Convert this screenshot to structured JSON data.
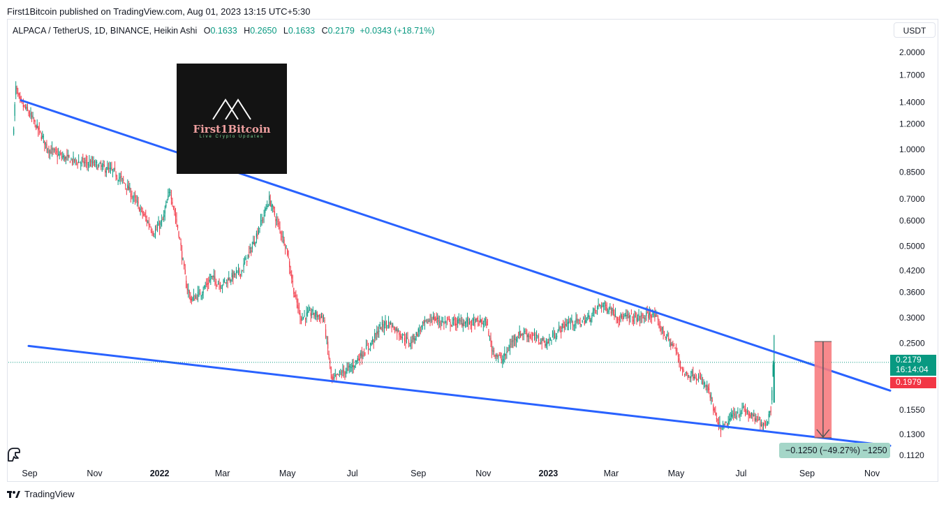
{
  "header": {
    "published": "First1Bitcoin published on TradingView.com, Aug 01, 2023 13:15 UTC+5:30"
  },
  "legend": {
    "symbol": "ALPACA / TetherUS, 1D, BINANCE, Heikin Ashi",
    "open_label": "O",
    "open": "0.1633",
    "high_label": "H",
    "high": "0.2650",
    "low_label": "L",
    "low": "0.1633",
    "close_label": "C",
    "close": "0.2179",
    "change": "+0.0343 (+18.71%)"
  },
  "currency_button": "USDT",
  "footer": {
    "brand": "TradingView"
  },
  "logo": {
    "name": "First1Bitcoin",
    "tagline": "Live Crypto Updates"
  },
  "price_tags": {
    "last_price": "0.2179",
    "countdown": "16:14:04",
    "line_value": "0.1979"
  },
  "measure": {
    "label": "−0.1250 (−49.27%) −1250"
  },
  "colors": {
    "up": "#089981",
    "down": "#f23645",
    "trendline": "#2962ff",
    "measure_fill": "#f77c80"
  },
  "chart_data": {
    "type": "candlestick",
    "scale": "log",
    "ylim": [
      0.105,
      2.2
    ],
    "xlim": [
      "2021-08-12",
      "2023-11-18"
    ],
    "y_ticks": [
      2.0,
      1.7,
      1.4,
      1.2,
      1.0,
      0.85,
      0.7,
      0.6,
      0.5,
      0.42,
      0.36,
      0.3,
      0.25,
      0.155,
      0.13,
      0.112
    ],
    "y_tick_labels": [
      "2.0000",
      "1.7000",
      "1.4000",
      "1.2000",
      "1.0000",
      "0.8500",
      "0.7000",
      "0.6000",
      "0.5000",
      "0.4200",
      "0.3600",
      "0.3000",
      "0.2500",
      "0.1550",
      "0.1300",
      "0.1120"
    ],
    "x_ticks": [
      {
        "label": "Sep",
        "date": "2021-09-01",
        "bold": false
      },
      {
        "label": "Nov",
        "date": "2021-11-01",
        "bold": false
      },
      {
        "label": "2022",
        "date": "2022-01-01",
        "bold": true
      },
      {
        "label": "Mar",
        "date": "2022-03-01",
        "bold": false
      },
      {
        "label": "May",
        "date": "2022-05-01",
        "bold": false
      },
      {
        "label": "Jul",
        "date": "2022-07-01",
        "bold": false
      },
      {
        "label": "Sep",
        "date": "2022-09-01",
        "bold": false
      },
      {
        "label": "Nov",
        "date": "2022-11-01",
        "bold": false
      },
      {
        "label": "2023",
        "date": "2023-01-01",
        "bold": true
      },
      {
        "label": "Mar",
        "date": "2023-03-01",
        "bold": false
      },
      {
        "label": "May",
        "date": "2023-05-01",
        "bold": false
      },
      {
        "label": "Jul",
        "date": "2023-07-01",
        "bold": false
      },
      {
        "label": "Sep",
        "date": "2023-09-01",
        "bold": false
      },
      {
        "label": "Nov",
        "date": "2023-11-01",
        "bold": false
      }
    ],
    "price_path": [
      [
        "2021-08-17",
        1.05
      ],
      [
        "2021-08-20",
        1.55
      ],
      [
        "2021-08-24",
        1.4
      ],
      [
        "2021-09-01",
        1.3
      ],
      [
        "2021-09-10",
        1.15
      ],
      [
        "2021-09-20",
        1.0
      ],
      [
        "2021-10-01",
        0.95
      ],
      [
        "2021-10-15",
        0.92
      ],
      [
        "2021-11-01",
        0.9
      ],
      [
        "2021-11-20",
        0.85
      ],
      [
        "2021-12-01",
        0.78
      ],
      [
        "2021-12-15",
        0.65
      ],
      [
        "2021-12-28",
        0.55
      ],
      [
        "2022-01-05",
        0.6
      ],
      [
        "2022-01-12",
        0.75
      ],
      [
        "2022-01-20",
        0.55
      ],
      [
        "2022-01-27",
        0.38
      ],
      [
        "2022-02-01",
        0.34
      ],
      [
        "2022-02-10",
        0.36
      ],
      [
        "2022-02-20",
        0.4
      ],
      [
        "2022-03-01",
        0.38
      ],
      [
        "2022-03-10",
        0.4
      ],
      [
        "2022-03-20",
        0.42
      ],
      [
        "2022-03-30",
        0.5
      ],
      [
        "2022-04-08",
        0.6
      ],
      [
        "2022-04-15",
        0.7
      ],
      [
        "2022-04-22",
        0.6
      ],
      [
        "2022-05-01",
        0.5
      ],
      [
        "2022-05-09",
        0.35
      ],
      [
        "2022-05-15",
        0.3
      ],
      [
        "2022-05-25",
        0.31
      ],
      [
        "2022-06-05",
        0.3
      ],
      [
        "2022-06-13",
        0.19
      ],
      [
        "2022-06-20",
        0.2
      ],
      [
        "2022-07-01",
        0.21
      ],
      [
        "2022-07-10",
        0.23
      ],
      [
        "2022-07-20",
        0.25
      ],
      [
        "2022-07-28",
        0.28
      ],
      [
        "2022-08-05",
        0.29
      ],
      [
        "2022-08-15",
        0.27
      ],
      [
        "2022-08-25",
        0.25
      ],
      [
        "2022-09-05",
        0.28
      ],
      [
        "2022-09-15",
        0.3
      ],
      [
        "2022-09-25",
        0.29
      ],
      [
        "2022-10-05",
        0.29
      ],
      [
        "2022-10-15",
        0.29
      ],
      [
        "2022-10-25",
        0.29
      ],
      [
        "2022-11-05",
        0.29
      ],
      [
        "2022-11-10",
        0.24
      ],
      [
        "2022-11-20",
        0.22
      ],
      [
        "2022-12-01",
        0.26
      ],
      [
        "2022-12-10",
        0.27
      ],
      [
        "2022-12-20",
        0.26
      ],
      [
        "2023-01-01",
        0.25
      ],
      [
        "2023-01-10",
        0.27
      ],
      [
        "2023-01-20",
        0.29
      ],
      [
        "2023-02-01",
        0.29
      ],
      [
        "2023-02-10",
        0.3
      ],
      [
        "2023-02-20",
        0.33
      ],
      [
        "2023-03-01",
        0.32
      ],
      [
        "2023-03-10",
        0.3
      ],
      [
        "2023-03-20",
        0.3
      ],
      [
        "2023-04-01",
        0.3
      ],
      [
        "2023-04-10",
        0.31
      ],
      [
        "2023-04-20",
        0.27
      ],
      [
        "2023-05-01",
        0.24
      ],
      [
        "2023-05-10",
        0.2
      ],
      [
        "2023-05-20",
        0.2
      ],
      [
        "2023-06-01",
        0.18
      ],
      [
        "2023-06-10",
        0.14
      ],
      [
        "2023-06-15",
        0.135
      ],
      [
        "2023-06-25",
        0.15
      ],
      [
        "2023-07-05",
        0.155
      ],
      [
        "2023-07-15",
        0.145
      ],
      [
        "2023-07-25",
        0.14
      ],
      [
        "2023-07-30",
        0.155
      ],
      [
        "2023-08-01",
        0.2179
      ]
    ],
    "trendlines": [
      {
        "name": "upper",
        "from": [
          "2021-08-24",
          1.42
        ],
        "to": [
          "2023-11-18",
          0.178
        ]
      },
      {
        "name": "lower",
        "from": [
          "2021-08-31",
          0.245
        ],
        "to": [
          "2023-11-18",
          0.12
        ]
      }
    ],
    "last_close": 0.2179,
    "horizontal_line": 0.1979,
    "measure": {
      "from_date": "2023-09-08",
      "to_date": "2023-09-24",
      "top": 0.253,
      "bottom": 0.127,
      "change": "−0.1250",
      "percent": "−49.27%"
    }
  }
}
